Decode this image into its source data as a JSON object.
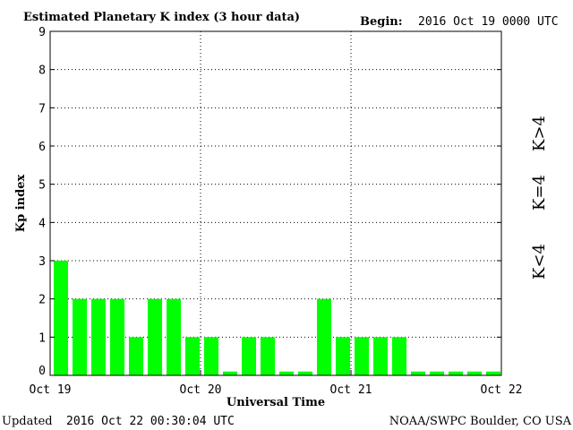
{
  "header": {
    "title": "Estimated Planetary K index (3 hour data)",
    "begin_label": "Begin:",
    "begin_value": "2016 Oct 19 0000 UTC"
  },
  "footer": {
    "updated_label": "Updated",
    "updated_value": "2016 Oct 22 00:30:04 UTC",
    "source": "NOAA/SWPC Boulder, CO USA"
  },
  "legend": {
    "low": {
      "text": "K<4",
      "color": "#00ff00"
    },
    "mid": {
      "text": "K=4",
      "color": "#ffcc00"
    },
    "high": {
      "text": "K>4",
      "color": "#ff3300"
    }
  },
  "chart_data": {
    "type": "bar",
    "title": "Estimated Planetary K index (3 hour data)",
    "xlabel": "Universal Time",
    "ylabel": "Kp index",
    "ylim": [
      0,
      9
    ],
    "yticks": [
      "0",
      "1",
      "2",
      "3",
      "4",
      "5",
      "6",
      "7",
      "8",
      "9"
    ],
    "xticks": [
      "Oct 19",
      "Oct 20",
      "Oct 21",
      "Oct 22"
    ],
    "interval_hours": 3,
    "grid": true,
    "bar_color": "#00ff00",
    "values": [
      3,
      2,
      2,
      2,
      1,
      2,
      2,
      1,
      1,
      0.1,
      1,
      1,
      0.1,
      0.1,
      2,
      1,
      1,
      1,
      1,
      0.1,
      0.1,
      0.1,
      0.1,
      0.1
    ]
  }
}
